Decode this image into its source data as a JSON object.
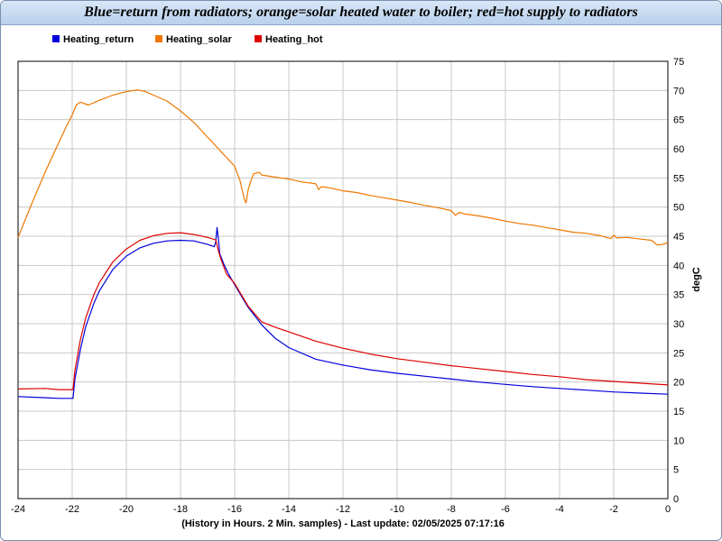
{
  "chart_data": {
    "type": "line",
    "title": "Blue=return from radiators; orange=solar heated water to boiler; red=hot supply to radiators",
    "xlabel": "(History in Hours. 2 Min. samples) - Last update: 02/05/2025 07:17:16",
    "ylabel": "degC",
    "xlim": [
      -24,
      0
    ],
    "ylim": [
      0,
      75
    ],
    "x_ticks": [
      -24,
      -22,
      -20,
      -18,
      -16,
      -14,
      -12,
      -10,
      -8,
      -6,
      -4,
      -2,
      0
    ],
    "y_ticks": [
      0,
      5,
      10,
      15,
      20,
      25,
      30,
      35,
      40,
      45,
      50,
      55,
      60,
      65,
      70,
      75
    ],
    "grid": true,
    "legend_position": "top-left",
    "y_axis_side": "right",
    "series": [
      {
        "name": "Heating_return",
        "color": "#0000dd",
        "points": [
          [
            -24,
            17.5
          ],
          [
            -23,
            17.3
          ],
          [
            -22.5,
            17.2
          ],
          [
            -21.97,
            17.2
          ],
          [
            -21.9,
            20.5
          ],
          [
            -21.7,
            25.5
          ],
          [
            -21.5,
            29.5
          ],
          [
            -21.2,
            33.5
          ],
          [
            -21,
            35.6
          ],
          [
            -20.5,
            39.3
          ],
          [
            -20,
            41.6
          ],
          [
            -19.5,
            43
          ],
          [
            -19,
            43.8
          ],
          [
            -18.5,
            44.2
          ],
          [
            -18,
            44.3
          ],
          [
            -17.5,
            44.2
          ],
          [
            -17,
            43.6
          ],
          [
            -16.75,
            43.2
          ],
          [
            -16.7,
            44
          ],
          [
            -16.65,
            46.5
          ],
          [
            -16.6,
            44.5
          ],
          [
            -16.55,
            42
          ],
          [
            -16.4,
            40.2
          ],
          [
            -16.2,
            38.3
          ],
          [
            -16,
            36.7
          ],
          [
            -15.5,
            32.8
          ],
          [
            -15,
            29.8
          ],
          [
            -14.5,
            27.5
          ],
          [
            -14,
            25.9
          ],
          [
            -13,
            23.9
          ],
          [
            -12,
            22.9
          ],
          [
            -11,
            22.1
          ],
          [
            -10,
            21.5
          ],
          [
            -9,
            21
          ],
          [
            -8,
            20.5
          ],
          [
            -7,
            20
          ],
          [
            -6,
            19.6
          ],
          [
            -5,
            19.2
          ],
          [
            -4,
            18.9
          ],
          [
            -3,
            18.6
          ],
          [
            -2,
            18.3
          ],
          [
            -1,
            18.1
          ],
          [
            0,
            17.9
          ]
        ]
      },
      {
        "name": "Heating_solar",
        "color": "#ee7700",
        "points": [
          [
            -24,
            44.8
          ],
          [
            -23.5,
            50.5
          ],
          [
            -23,
            56
          ],
          [
            -22.5,
            61
          ],
          [
            -22.2,
            64
          ],
          [
            -22,
            65.8
          ],
          [
            -21.85,
            67.5
          ],
          [
            -21.7,
            68
          ],
          [
            -21.4,
            67.5
          ],
          [
            -21,
            68.3
          ],
          [
            -20.5,
            69.2
          ],
          [
            -20,
            69.8
          ],
          [
            -19.6,
            70.1
          ],
          [
            -19.3,
            69.8
          ],
          [
            -19,
            69.2
          ],
          [
            -18.5,
            68.2
          ],
          [
            -18,
            66.5
          ],
          [
            -17.5,
            64.5
          ],
          [
            -17,
            62
          ],
          [
            -16.5,
            59.5
          ],
          [
            -16,
            57
          ],
          [
            -15.8,
            54.5
          ],
          [
            -15.65,
            51.5
          ],
          [
            -15.58,
            50.7
          ],
          [
            -15.5,
            53
          ],
          [
            -15.4,
            54.5
          ],
          [
            -15.3,
            55.7
          ],
          [
            -15.1,
            56
          ],
          [
            -15,
            55.5
          ],
          [
            -14.6,
            55.2
          ],
          [
            -14.3,
            55
          ],
          [
            -14,
            54.8
          ],
          [
            -13.5,
            54.3
          ],
          [
            -13,
            54
          ],
          [
            -12.9,
            53
          ],
          [
            -12.8,
            53.5
          ],
          [
            -12.5,
            53.3
          ],
          [
            -12,
            52.8
          ],
          [
            -11.5,
            52.5
          ],
          [
            -11,
            52
          ],
          [
            -10.5,
            51.6
          ],
          [
            -10,
            51.2
          ],
          [
            -9.5,
            50.8
          ],
          [
            -9,
            50.3
          ],
          [
            -8.5,
            49.9
          ],
          [
            -8,
            49.4
          ],
          [
            -7.85,
            48.6
          ],
          [
            -7.7,
            49.1
          ],
          [
            -7.5,
            48.8
          ],
          [
            -7,
            48.5
          ],
          [
            -6.5,
            48.1
          ],
          [
            -6,
            47.6
          ],
          [
            -5.5,
            47.2
          ],
          [
            -5,
            46.9
          ],
          [
            -4.5,
            46.5
          ],
          [
            -4,
            46.1
          ],
          [
            -3.5,
            45.7
          ],
          [
            -3,
            45.5
          ],
          [
            -2.5,
            45.1
          ],
          [
            -2.1,
            44.6
          ],
          [
            -2,
            45.2
          ],
          [
            -1.9,
            44.7
          ],
          [
            -1.5,
            44.8
          ],
          [
            -1,
            44.5
          ],
          [
            -0.6,
            44.3
          ],
          [
            -0.4,
            43.5
          ],
          [
            -0.2,
            43.6
          ],
          [
            0,
            43.9
          ]
        ]
      },
      {
        "name": "Heating_hot",
        "color": "#dd0000",
        "points": [
          [
            -24,
            18.8
          ],
          [
            -23,
            18.9
          ],
          [
            -22.5,
            18.7
          ],
          [
            -21.97,
            18.7
          ],
          [
            -21.9,
            22
          ],
          [
            -21.7,
            27.2
          ],
          [
            -21.5,
            31
          ],
          [
            -21.2,
            35
          ],
          [
            -21,
            37
          ],
          [
            -20.5,
            40.6
          ],
          [
            -20,
            42.8
          ],
          [
            -19.5,
            44.3
          ],
          [
            -19,
            45.1
          ],
          [
            -18.5,
            45.5
          ],
          [
            -18,
            45.6
          ],
          [
            -17.5,
            45.3
          ],
          [
            -17,
            44.8
          ],
          [
            -16.7,
            44.4
          ],
          [
            -16.6,
            42.5
          ],
          [
            -16.5,
            41
          ],
          [
            -16.3,
            38.5
          ],
          [
            -16,
            36.9
          ],
          [
            -15.5,
            33
          ],
          [
            -15,
            30.3
          ],
          [
            -14.5,
            29.4
          ],
          [
            -14,
            28.6
          ],
          [
            -13,
            27
          ],
          [
            -12,
            25.8
          ],
          [
            -11,
            24.8
          ],
          [
            -10,
            24
          ],
          [
            -9,
            23.4
          ],
          [
            -8,
            22.8
          ],
          [
            -7,
            22.3
          ],
          [
            -6,
            21.8
          ],
          [
            -5,
            21.3
          ],
          [
            -4,
            20.9
          ],
          [
            -3,
            20.4
          ],
          [
            -2,
            20.1
          ],
          [
            -1,
            19.8
          ],
          [
            0,
            19.5
          ]
        ]
      }
    ]
  }
}
